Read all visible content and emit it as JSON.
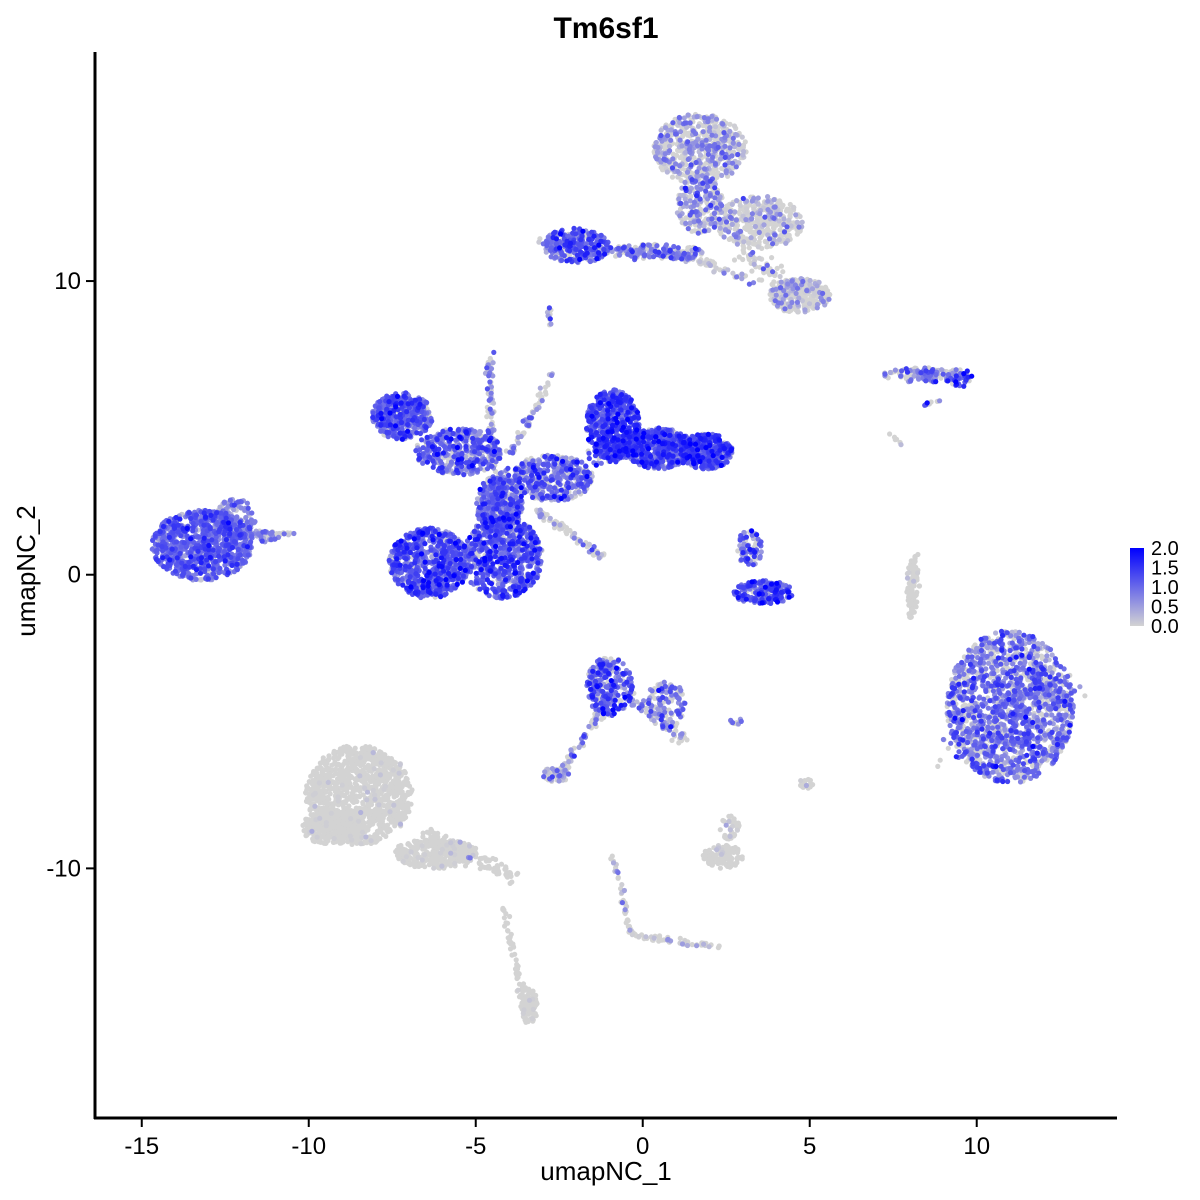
{
  "chart_data": {
    "type": "scatter",
    "title": "Tm6sf1",
    "xlabel": "umapNC_1",
    "ylabel": "umapNC_2",
    "xlim": [
      -16.4,
      14.2
    ],
    "ylim": [
      -18.5,
      17.8
    ],
    "x_ticks": [
      -15,
      -10,
      -5,
      0,
      5,
      10
    ],
    "x_tick_labels": [
      "-15",
      "-10",
      "-5",
      "0",
      "5",
      "10"
    ],
    "y_ticks": [
      -10,
      0,
      10
    ],
    "y_tick_labels": [
      "-10",
      "0",
      "10"
    ],
    "grid": false,
    "legend": {
      "placement": "right",
      "type": "colorbar",
      "range": [
        0,
        2
      ],
      "ticks": [
        0.0,
        0.5,
        1.0,
        1.5,
        2.0
      ],
      "tick_labels": [
        "0.0",
        "0.5",
        "1.0",
        "1.5",
        "2.0"
      ],
      "low_color": "#D3D3D3",
      "high_color": "#0000FF"
    },
    "clusters": [
      {
        "id": "c01",
        "cx": -13.2,
        "cy": 1.0,
        "rx": 1.5,
        "ry": 1.2,
        "n": 900,
        "expr_mean": 0.95,
        "expr_sd": 0.35,
        "expr_zero_frac": 0.08
      },
      {
        "id": "c02",
        "cx": -12.2,
        "cy": 1.9,
        "rx": 0.6,
        "ry": 0.7,
        "n": 120,
        "expr_mean": 0.8,
        "expr_sd": 0.4,
        "expr_zero_frac": 0.15
      },
      {
        "id": "c03",
        "cx": -11.5,
        "cy": 1.3,
        "rx": 0.6,
        "ry": 0.2,
        "n": 40,
        "expr_mean": 0.7,
        "expr_sd": 0.4,
        "expr_zero_frac": 0.25
      },
      {
        "id": "c04",
        "cx": -6.4,
        "cy": 0.4,
        "rx": 1.2,
        "ry": 1.2,
        "n": 700,
        "expr_mean": 1.1,
        "expr_sd": 0.4,
        "expr_zero_frac": 0.1
      },
      {
        "id": "c05",
        "cx": -4.2,
        "cy": 0.6,
        "rx": 1.2,
        "ry": 1.4,
        "n": 700,
        "expr_mean": 1.1,
        "expr_sd": 0.4,
        "expr_zero_frac": 0.1
      },
      {
        "id": "c06",
        "cx": -4.3,
        "cy": 2.4,
        "rx": 0.7,
        "ry": 1.0,
        "n": 300,
        "expr_mean": 0.9,
        "expr_sd": 0.4,
        "expr_zero_frac": 0.2
      },
      {
        "id": "c07",
        "cx": -7.2,
        "cy": 5.4,
        "rx": 0.9,
        "ry": 0.8,
        "n": 450,
        "expr_mean": 1.0,
        "expr_sd": 0.4,
        "expr_zero_frac": 0.12
      },
      {
        "id": "c08",
        "cx": -5.5,
        "cy": 4.2,
        "rx": 1.3,
        "ry": 0.8,
        "n": 450,
        "expr_mean": 0.9,
        "expr_sd": 0.45,
        "expr_zero_frac": 0.2
      },
      {
        "id": "c09",
        "cx": -2.7,
        "cy": 3.3,
        "rx": 1.2,
        "ry": 0.8,
        "n": 400,
        "expr_mean": 0.9,
        "expr_sd": 0.45,
        "expr_zero_frac": 0.2
      },
      {
        "id": "c10",
        "cx": -0.9,
        "cy": 5.1,
        "rx": 0.8,
        "ry": 1.2,
        "n": 550,
        "expr_mean": 1.2,
        "expr_sd": 0.4,
        "expr_zero_frac": 0.08
      },
      {
        "id": "c11",
        "cx": 0.5,
        "cy": 4.3,
        "rx": 1.0,
        "ry": 0.7,
        "n": 500,
        "expr_mean": 1.1,
        "expr_sd": 0.4,
        "expr_zero_frac": 0.1
      },
      {
        "id": "c12",
        "cx": 1.9,
        "cy": 4.2,
        "rx": 0.8,
        "ry": 0.6,
        "n": 350,
        "expr_mean": 1.15,
        "expr_sd": 0.4,
        "expr_zero_frac": 0.08
      },
      {
        "id": "c13",
        "cx": -2.0,
        "cy": 11.2,
        "rx": 1.0,
        "ry": 0.6,
        "n": 260,
        "expr_mean": 1.0,
        "expr_sd": 0.45,
        "expr_zero_frac": 0.15
      },
      {
        "id": "c14",
        "cx": 0.3,
        "cy": 11.0,
        "rx": 1.6,
        "ry": 0.25,
        "n": 120,
        "expr_mean": 0.8,
        "expr_sd": 0.45,
        "expr_zero_frac": 0.35
      },
      {
        "id": "c15",
        "cx": 1.7,
        "cy": 14.5,
        "rx": 1.4,
        "ry": 1.2,
        "n": 600,
        "expr_mean": 0.5,
        "expr_sd": 0.35,
        "expr_zero_frac": 0.55
      },
      {
        "id": "c16",
        "cx": 1.7,
        "cy": 12.6,
        "rx": 0.7,
        "ry": 1.0,
        "n": 220,
        "expr_mean": 0.6,
        "expr_sd": 0.4,
        "expr_zero_frac": 0.45
      },
      {
        "id": "c17",
        "cx": 3.5,
        "cy": 12.0,
        "rx": 1.3,
        "ry": 0.9,
        "n": 400,
        "expr_mean": 0.4,
        "expr_sd": 0.35,
        "expr_zero_frac": 0.7
      },
      {
        "id": "c18",
        "cx": 4.7,
        "cy": 9.5,
        "rx": 0.9,
        "ry": 0.6,
        "n": 250,
        "expr_mean": 0.45,
        "expr_sd": 0.35,
        "expr_zero_frac": 0.65
      },
      {
        "id": "c19",
        "cx": 8.4,
        "cy": 6.8,
        "rx": 1.2,
        "ry": 0.25,
        "n": 120,
        "expr_mean": 0.7,
        "expr_sd": 0.45,
        "expr_zero_frac": 0.35
      },
      {
        "id": "c20",
        "cx": 3.2,
        "cy": 0.9,
        "rx": 0.4,
        "ry": 0.6,
        "n": 80,
        "expr_mean": 0.9,
        "expr_sd": 0.45,
        "expr_zero_frac": 0.25
      },
      {
        "id": "c21",
        "cx": 3.6,
        "cy": -0.6,
        "rx": 0.9,
        "ry": 0.4,
        "n": 200,
        "expr_mean": 1.1,
        "expr_sd": 0.45,
        "expr_zero_frac": 0.15
      },
      {
        "id": "c22",
        "cx": 8.1,
        "cy": -0.3,
        "rx": 0.2,
        "ry": 1.0,
        "n": 70,
        "expr_mean": 0.05,
        "expr_sd": 0.1,
        "expr_zero_frac": 0.95
      },
      {
        "id": "c23",
        "cx": 11.0,
        "cy": -4.5,
        "rx": 1.9,
        "ry": 2.6,
        "n": 1600,
        "expr_mean": 0.85,
        "expr_sd": 0.4,
        "expr_zero_frac": 0.3
      },
      {
        "id": "c24",
        "cx": -1.0,
        "cy": -3.8,
        "rx": 0.7,
        "ry": 1.0,
        "n": 280,
        "expr_mean": 1.0,
        "expr_sd": 0.45,
        "expr_zero_frac": 0.2
      },
      {
        "id": "c25",
        "cx": 0.7,
        "cy": -4.4,
        "rx": 0.6,
        "ry": 0.8,
        "n": 140,
        "expr_mean": 0.7,
        "expr_sd": 0.45,
        "expr_zero_frac": 0.4
      },
      {
        "id": "c26",
        "cx": -2.6,
        "cy": -6.8,
        "rx": 0.4,
        "ry": 0.25,
        "n": 50,
        "expr_mean": 0.5,
        "expr_sd": 0.4,
        "expr_zero_frac": 0.55
      },
      {
        "id": "c27",
        "cx": -8.5,
        "cy": -7.5,
        "rx": 1.6,
        "ry": 1.7,
        "n": 1100,
        "expr_mean": 0.05,
        "expr_sd": 0.15,
        "expr_zero_frac": 0.97
      },
      {
        "id": "c28",
        "cx": -9.3,
        "cy": -8.6,
        "rx": 0.9,
        "ry": 0.6,
        "n": 300,
        "expr_mean": 0.05,
        "expr_sd": 0.15,
        "expr_zero_frac": 0.97
      },
      {
        "id": "c29",
        "cx": -6.2,
        "cy": -9.5,
        "rx": 1.3,
        "ry": 0.5,
        "n": 300,
        "expr_mean": 0.05,
        "expr_sd": 0.15,
        "expr_zero_frac": 0.96
      },
      {
        "id": "c30",
        "cx": -3.4,
        "cy": -14.7,
        "rx": 0.25,
        "ry": 0.6,
        "n": 70,
        "expr_mean": 0.05,
        "expr_sd": 0.15,
        "expr_zero_frac": 0.95
      },
      {
        "id": "c31",
        "cx": 2.4,
        "cy": -9.6,
        "rx": 0.6,
        "ry": 0.4,
        "n": 120,
        "expr_mean": 0.1,
        "expr_sd": 0.2,
        "expr_zero_frac": 0.9
      },
      {
        "id": "c32",
        "cx": 2.6,
        "cy": -8.6,
        "rx": 0.3,
        "ry": 0.4,
        "n": 40,
        "expr_mean": 0.1,
        "expr_sd": 0.2,
        "expr_zero_frac": 0.9
      },
      {
        "id": "c33",
        "cx": 9.5,
        "cy": 6.7,
        "rx": 0.4,
        "ry": 0.3,
        "n": 45,
        "expr_mean": 1.2,
        "expr_sd": 0.5,
        "expr_zero_frac": 0.2
      },
      {
        "id": "c34",
        "cx": 4.9,
        "cy": -7.1,
        "rx": 0.2,
        "ry": 0.2,
        "n": 20,
        "expr_mean": 0.1,
        "expr_sd": 0.2,
        "expr_zero_frac": 0.9
      },
      {
        "id": "c35",
        "cx": 2.8,
        "cy": -5.0,
        "rx": 0.25,
        "ry": 0.1,
        "n": 10,
        "expr_mean": 0.5,
        "expr_sd": 0.4,
        "expr_zero_frac": 0.5
      }
    ],
    "trails": [
      {
        "id": "t01",
        "from": [
          -11.5,
          1.3
        ],
        "to": [
          -10.5,
          1.4
        ],
        "n": 20,
        "spread": 0.15,
        "expr_mean": 0.5,
        "expr_zero_frac": 0.5
      },
      {
        "id": "t02",
        "from": [
          -4.2,
          1.4
        ],
        "to": [
          -4.3,
          3.5
        ],
        "n": 150,
        "spread": 0.35,
        "expr_mean": 0.9,
        "expr_zero_frac": 0.25
      },
      {
        "id": "t03",
        "from": [
          -4.5,
          3.8
        ],
        "to": [
          -4.6,
          7.5
        ],
        "n": 90,
        "spread": 0.12,
        "expr_mean": 0.6,
        "expr_zero_frac": 0.5
      },
      {
        "id": "t04",
        "from": [
          -4.0,
          4.0
        ],
        "to": [
          -2.7,
          6.8
        ],
        "n": 60,
        "spread": 0.12,
        "expr_mean": 0.6,
        "expr_zero_frac": 0.5
      },
      {
        "id": "t05",
        "from": [
          -3.2,
          2.2
        ],
        "to": [
          -1.2,
          0.6
        ],
        "n": 70,
        "spread": 0.12,
        "expr_mean": 0.4,
        "expr_zero_frac": 0.6
      },
      {
        "id": "t06",
        "from": [
          -1.5,
          4.0
        ],
        "to": [
          0.0,
          4.5
        ],
        "n": 120,
        "spread": 0.4,
        "expr_mean": 1.0,
        "expr_zero_frac": 0.15
      },
      {
        "id": "t07",
        "from": [
          -3.0,
          11.3
        ],
        "to": [
          1.5,
          10.8
        ],
        "n": 130,
        "spread": 0.18,
        "expr_mean": 0.8,
        "expr_zero_frac": 0.3
      },
      {
        "id": "t08",
        "from": [
          1.0,
          11.0
        ],
        "to": [
          3.2,
          10.0
        ],
        "n": 60,
        "spread": 0.18,
        "expr_mean": 0.5,
        "expr_zero_frac": 0.55
      },
      {
        "id": "t09",
        "from": [
          3.0,
          11.0
        ],
        "to": [
          4.6,
          9.6
        ],
        "n": 80,
        "spread": 0.3,
        "expr_mean": 0.4,
        "expr_zero_frac": 0.7
      },
      {
        "id": "t10",
        "from": [
          -0.9,
          -4.0
        ],
        "to": [
          -2.5,
          -6.9
        ],
        "n": 70,
        "spread": 0.15,
        "expr_mean": 0.7,
        "expr_zero_frac": 0.4
      },
      {
        "id": "t11",
        "from": [
          -0.5,
          -4.0
        ],
        "to": [
          1.3,
          -5.7
        ],
        "n": 60,
        "spread": 0.2,
        "expr_mean": 0.6,
        "expr_zero_frac": 0.4
      },
      {
        "id": "t12",
        "from": [
          -6.5,
          -8.8
        ],
        "to": [
          -3.9,
          -10.3
        ],
        "n": 120,
        "spread": 0.25,
        "expr_mean": 0.05,
        "expr_zero_frac": 0.95
      },
      {
        "id": "t13",
        "from": [
          -4.2,
          -11.2
        ],
        "to": [
          -3.5,
          -15.0
        ],
        "n": 60,
        "spread": 0.12,
        "expr_mean": 0.05,
        "expr_zero_frac": 0.95
      },
      {
        "id": "t14",
        "from": [
          -0.9,
          -9.6
        ],
        "to": [
          -0.3,
          -12.4
        ],
        "n": 40,
        "spread": 0.08,
        "expr_mean": 0.3,
        "expr_zero_frac": 0.7
      },
      {
        "id": "t15",
        "from": [
          -0.2,
          -12.3
        ],
        "to": [
          2.4,
          -12.7
        ],
        "n": 50,
        "spread": 0.1,
        "expr_mean": 0.3,
        "expr_zero_frac": 0.7
      },
      {
        "id": "t16",
        "from": [
          8.2,
          0.7
        ],
        "to": [
          8.0,
          -1.5
        ],
        "n": 30,
        "spread": 0.08,
        "expr_mean": 0.05,
        "expr_zero_frac": 0.95
      },
      {
        "id": "t17",
        "from": [
          9.2,
          -6.0
        ],
        "to": [
          12.8,
          -3.8
        ],
        "n": 120,
        "spread": 0.6,
        "expr_mean": 0.8,
        "expr_zero_frac": 0.3
      },
      {
        "id": "t18",
        "from": [
          -2.8,
          9.2
        ],
        "to": [
          -2.8,
          8.5
        ],
        "n": 12,
        "spread": 0.08,
        "expr_mean": 0.7,
        "expr_zero_frac": 0.3
      },
      {
        "id": "t19",
        "from": [
          8.9,
          6.0
        ],
        "to": [
          8.4,
          5.7
        ],
        "n": 10,
        "spread": 0.08,
        "expr_mean": 0.6,
        "expr_zero_frac": 0.4
      },
      {
        "id": "t20",
        "from": [
          7.4,
          4.8
        ],
        "to": [
          7.8,
          4.4
        ],
        "n": 6,
        "spread": 0.06,
        "expr_mean": 0.1,
        "expr_zero_frac": 0.8
      }
    ]
  }
}
